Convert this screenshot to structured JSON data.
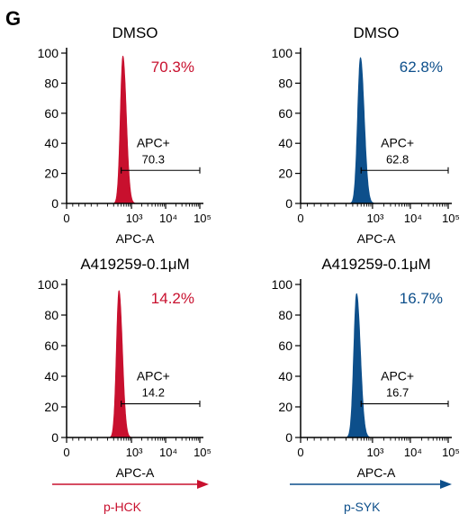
{
  "figure": {
    "panel_letter": "G",
    "colors": {
      "hck": "#c8102e",
      "syk": "#0d4f8b",
      "axis": "#000000"
    },
    "bottom_arrows": [
      {
        "label": "p-HCK",
        "color": "#c8102e"
      },
      {
        "label": "p-SYK",
        "color": "#0d4f8b"
      }
    ]
  },
  "chart_data": [
    {
      "type": "area",
      "title": "DMSO",
      "xlabel": "APC-A",
      "x_scale": "biexponential",
      "ylim": [
        0,
        100
      ],
      "x_ticks": [
        "0",
        "10³",
        "10⁴",
        "10⁵"
      ],
      "y_ticks": [
        "0",
        "20",
        "40",
        "60",
        "80",
        "100"
      ],
      "series": [
        {
          "color": "#c8102e",
          "peak_x": 560,
          "peak_y": 98
        }
      ],
      "percent_label": "70.3%",
      "gate": {
        "name": "APC+",
        "value": "70.3",
        "x_start": 500,
        "x_end": 100000,
        "y": 22
      }
    },
    {
      "type": "area",
      "title": "DMSO",
      "xlabel": "APC-A",
      "x_scale": "biexponential",
      "ylim": [
        0,
        100
      ],
      "x_ticks": [
        "0",
        "10³",
        "10⁴",
        "10⁵"
      ],
      "y_ticks": [
        "0",
        "20",
        "40",
        "60",
        "80",
        "100"
      ],
      "series": [
        {
          "color": "#0d4f8b",
          "peak_x": 480,
          "peak_y": 97
        }
      ],
      "percent_label": "62.8%",
      "gate": {
        "name": "APC+",
        "value": "62.8",
        "x_start": 500,
        "x_end": 100000,
        "y": 22
      }
    },
    {
      "type": "area",
      "title": "A419259-0.1μM",
      "xlabel": "APC-A",
      "x_scale": "biexponential",
      "ylim": [
        0,
        100
      ],
      "x_ticks": [
        "0",
        "10³",
        "10⁴",
        "10⁵"
      ],
      "y_ticks": [
        "0",
        "20",
        "40",
        "60",
        "80",
        "100"
      ],
      "series": [
        {
          "color": "#c8102e",
          "peak_x": 430,
          "peak_y": 96
        }
      ],
      "percent_label": "14.2%",
      "gate": {
        "name": "APC+",
        "value": "14.2",
        "x_start": 500,
        "x_end": 100000,
        "y": 22
      }
    },
    {
      "type": "area",
      "title": "A419259-0.1μM",
      "xlabel": "APC-A",
      "x_scale": "biexponential",
      "ylim": [
        0,
        100
      ],
      "x_ticks": [
        "0",
        "10³",
        "10⁴",
        "10⁵"
      ],
      "y_ticks": [
        "0",
        "20",
        "40",
        "60",
        "80",
        "100"
      ],
      "series": [
        {
          "color": "#0d4f8b",
          "peak_x": 380,
          "peak_y": 94
        }
      ],
      "percent_label": "16.7%",
      "gate": {
        "name": "APC+",
        "value": "16.7",
        "x_start": 500,
        "x_end": 100000,
        "y": 22
      }
    }
  ]
}
